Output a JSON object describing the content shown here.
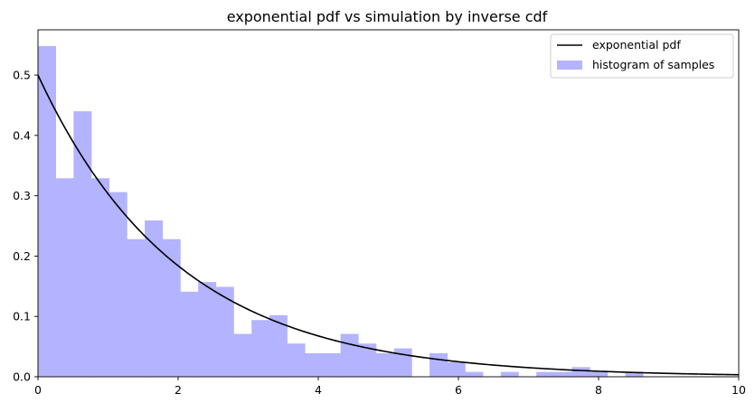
{
  "chart_data": {
    "type": "bar",
    "title": "exponential pdf vs simulation by inverse cdf",
    "xlabel": "",
    "ylabel": "",
    "xlim": [
      0,
      10
    ],
    "ylim": [
      0,
      0.575
    ],
    "xticks": [
      0,
      2,
      4,
      6,
      8,
      10
    ],
    "yticks": [
      0.0,
      0.1,
      0.2,
      0.3,
      0.4,
      0.5
    ],
    "legend_position": "upper right",
    "grid": false,
    "colors": {
      "histogram": "#b3b3ff",
      "pdf_line": "#000000"
    },
    "series": [
      {
        "name": "exponential pdf",
        "kind": "line",
        "function": "0.5*exp(-0.5*x)",
        "rate": 0.5
      },
      {
        "name": "histogram of samples",
        "kind": "histogram",
        "bin_width": 0.254,
        "bin_edges_start": 0,
        "values": [
          0.548,
          0.329,
          0.44,
          0.329,
          0.306,
          0.228,
          0.259,
          0.228,
          0.141,
          0.157,
          0.149,
          0.071,
          0.094,
          0.102,
          0.055,
          0.039,
          0.039,
          0.071,
          0.055,
          0.039,
          0.047,
          0.0,
          0.039,
          0.024,
          0.008,
          0.0,
          0.008,
          0.0,
          0.008,
          0.008,
          0.016,
          0.008,
          0.0,
          0.008,
          0.0
        ]
      }
    ]
  }
}
